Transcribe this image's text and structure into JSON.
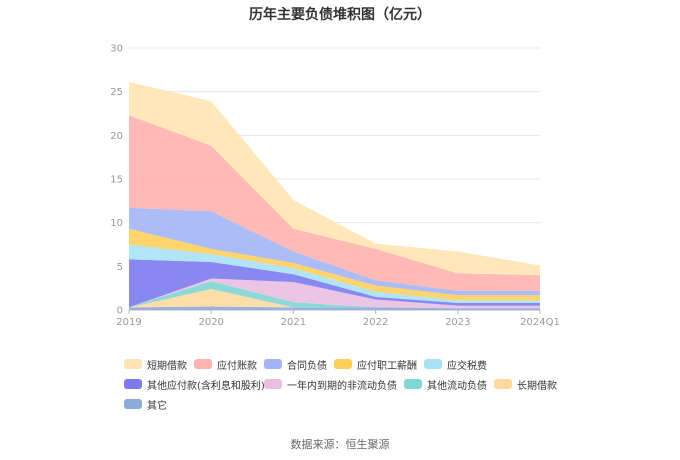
{
  "chart_data": {
    "type": "area",
    "stacked": true,
    "title": "历年主要负债堆积图（亿元）",
    "categories": [
      "2019",
      "2020",
      "2021",
      "2022",
      "2023",
      "2024Q1"
    ],
    "ylim": [
      0,
      30
    ],
    "yticks": [
      "0",
      "5",
      "10",
      "15",
      "20",
      "25",
      "30"
    ],
    "grid": true,
    "legend_position": "bottom",
    "series": [
      {
        "name": "其它",
        "color": "#8eaadb",
        "values": [
          0.3,
          0.4,
          0.3,
          0.3,
          0.2,
          0.2
        ]
      },
      {
        "name": "长期借款",
        "color": "#ffd9a0",
        "values": [
          0.0,
          2.0,
          0.0,
          0.0,
          0.0,
          0.0
        ]
      },
      {
        "name": "其他流动负债",
        "color": "#7fd6d4",
        "values": [
          0.0,
          0.9,
          0.6,
          0.0,
          0.0,
          0.0
        ]
      },
      {
        "name": "一年内到期的非流动负债",
        "color": "#e9bfe0",
        "values": [
          0.0,
          0.3,
          2.3,
          0.9,
          0.3,
          0.3
        ]
      },
      {
        "name": "其他应付款(含利息和股利)",
        "color": "#7b7bee",
        "values": [
          5.5,
          1.9,
          0.9,
          0.3,
          0.3,
          0.3
        ]
      },
      {
        "name": "应交税费",
        "color": "#a8e1f5",
        "values": [
          1.7,
          0.9,
          0.7,
          0.6,
          0.3,
          0.3
        ]
      },
      {
        "name": "应付职工薪酬",
        "color": "#ffcf5c",
        "values": [
          1.8,
          0.6,
          0.6,
          0.7,
          0.6,
          0.6
        ]
      },
      {
        "name": "合同负债",
        "color": "#a3b5f5",
        "values": [
          2.4,
          4.3,
          1.3,
          0.6,
          0.5,
          0.5
        ]
      },
      {
        "name": "应付账款",
        "color": "#ffb3b0",
        "values": [
          10.6,
          7.5,
          2.6,
          3.6,
          2.0,
          1.8
        ]
      },
      {
        "name": "短期借款",
        "color": "#ffe4b3",
        "values": [
          3.8,
          5.1,
          3.3,
          0.6,
          2.5,
          1.1
        ]
      }
    ],
    "legend_order": [
      "短期借款",
      "应付账款",
      "合同负债",
      "应付职工薪酬",
      "应交税费",
      "其他应付款(含利息和股利)",
      "一年内到期的非流动负债",
      "其他流动负债",
      "长期借款",
      "其它"
    ]
  },
  "source_text": "数据来源：恒生聚源"
}
